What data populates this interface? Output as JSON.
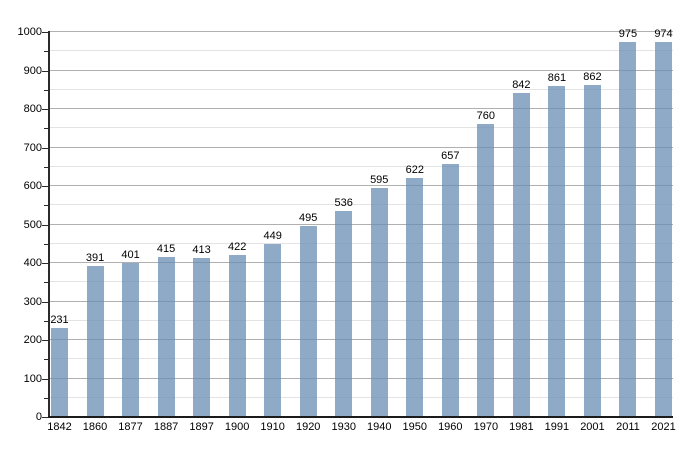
{
  "chart_data": {
    "type": "bar",
    "title": "",
    "xlabel": "",
    "ylabel": "",
    "categories": [
      "1842",
      "1860",
      "1877",
      "1887",
      "1897",
      "1900",
      "1910",
      "1920",
      "1930",
      "1940",
      "1950",
      "1960",
      "1970",
      "1981",
      "1991",
      "2001",
      "2011",
      "2021"
    ],
    "values": [
      231,
      391,
      401,
      415,
      413,
      422,
      449,
      495,
      536,
      595,
      622,
      657,
      760,
      842,
      861,
      862,
      975,
      974
    ],
    "bar_labels": [
      "231",
      "391",
      "401",
      "415",
      "413",
      "422",
      "449",
      "495",
      "536",
      "595",
      "622",
      "657",
      "760",
      "842",
      "861",
      "862",
      "975",
      "974"
    ],
    "ylim": [
      0,
      1000
    ],
    "y_major_step": 100,
    "y_minor_step": 50,
    "y_tick_labels": [
      "0",
      "100",
      "200",
      "300",
      "400",
      "500",
      "600",
      "700",
      "800",
      "900",
      "1000"
    ],
    "grid": true,
    "legend": "none",
    "colors": {
      "bar": "rgba(106,142,179,0.75)",
      "grid_major": "#b0b0b0",
      "grid_minor": "#e3e3e3",
      "axis": "#2b2b2b",
      "text": "#000000",
      "background": "#ffffff"
    }
  }
}
